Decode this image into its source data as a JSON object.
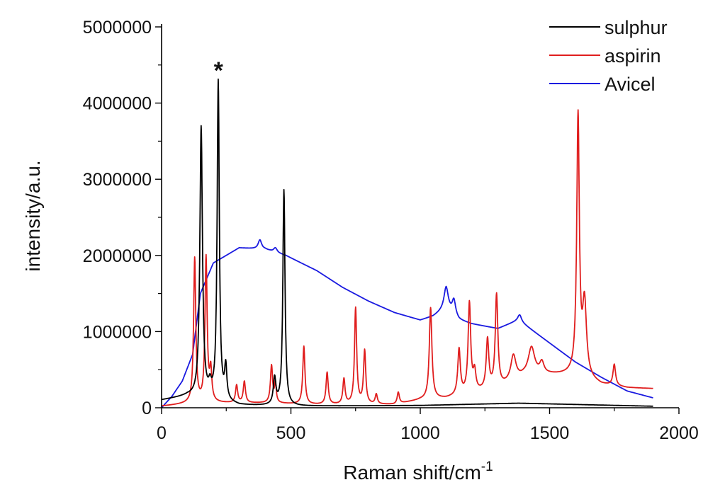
{
  "chart_data": {
    "type": "line",
    "title": "",
    "xlabel": "Raman shift/cm",
    "xlabel_sup": "-1",
    "ylabel": "intensity/a.u.",
    "xlim": [
      0,
      2000
    ],
    "ylim": [
      0,
      5000000
    ],
    "xticks": [
      0,
      500,
      1000,
      1500,
      2000
    ],
    "yticks": [
      0,
      1000000,
      2000000,
      3000000,
      4000000,
      5000000
    ],
    "grid": false,
    "legend_position": "top-right",
    "annotations": [
      {
        "text": "*",
        "x": 220,
        "y": 4450000
      }
    ],
    "series": [
      {
        "name": "sulphur",
        "color": "#000000",
        "baseline": [
          [
            0,
            100000
          ],
          [
            100,
            150000
          ],
          [
            200,
            100000
          ],
          [
            300,
            30000
          ],
          [
            500,
            20000
          ],
          [
            1000,
            30000
          ],
          [
            1380,
            60000
          ],
          [
            1900,
            20000
          ]
        ],
        "peaks": [
          [
            153,
            3550000,
            6
          ],
          [
            187,
            130000,
            6
          ],
          [
            219,
            4180000,
            5
          ],
          [
            248,
            430000,
            5
          ],
          [
            437,
            350000,
            6
          ],
          [
            473,
            2830000,
            5
          ]
        ]
      },
      {
        "name": "aspirin",
        "color": "#e01e1e",
        "baseline": [
          [
            0,
            20000
          ],
          [
            100,
            50000
          ],
          [
            200,
            60000
          ],
          [
            400,
            60000
          ],
          [
            600,
            40000
          ],
          [
            900,
            40000
          ],
          [
            1000,
            100000
          ],
          [
            1100,
            120000
          ],
          [
            1300,
            250000
          ],
          [
            1400,
            400000
          ],
          [
            1500,
            430000
          ],
          [
            1600,
            430000
          ],
          [
            1700,
            300000
          ],
          [
            1800,
            260000
          ],
          [
            1900,
            250000
          ]
        ],
        "peaks": [
          [
            128,
            1900000,
            5
          ],
          [
            172,
            1900000,
            5
          ],
          [
            190,
            400000,
            5
          ],
          [
            290,
            230000,
            5
          ],
          [
            320,
            280000,
            5
          ],
          [
            425,
            490000,
            5
          ],
          [
            440,
            250000,
            4
          ],
          [
            550,
            760000,
            5
          ],
          [
            640,
            420000,
            5
          ],
          [
            705,
            330000,
            5
          ],
          [
            750,
            1260000,
            5
          ],
          [
            785,
            700000,
            5
          ],
          [
            830,
            130000,
            5
          ],
          [
            915,
            150000,
            5
          ],
          [
            1040,
            1200000,
            6
          ],
          [
            1150,
            600000,
            6
          ],
          [
            1190,
            1180000,
            6
          ],
          [
            1210,
            250000,
            6
          ],
          [
            1260,
            650000,
            6
          ],
          [
            1295,
            1220000,
            6
          ],
          [
            1360,
            330000,
            12
          ],
          [
            1430,
            370000,
            15
          ],
          [
            1470,
            150000,
            10
          ],
          [
            1610,
            3380000,
            6
          ],
          [
            1635,
            950000,
            9
          ],
          [
            1750,
            280000,
            6
          ]
        ]
      },
      {
        "name": "Avicel",
        "color": "#1a1ae0",
        "baseline": [
          [
            0,
            0
          ],
          [
            40,
            150000
          ],
          [
            80,
            350000
          ],
          [
            120,
            700000
          ],
          [
            150,
            1500000
          ],
          [
            200,
            1900000
          ],
          [
            300,
            2100000
          ],
          [
            400,
            2080000
          ],
          [
            480,
            2000000
          ],
          [
            600,
            1800000
          ],
          [
            700,
            1580000
          ],
          [
            800,
            1400000
          ],
          [
            900,
            1250000
          ],
          [
            1000,
            1150000
          ],
          [
            1050,
            1200000
          ],
          [
            1100,
            1300000
          ],
          [
            1150,
            1150000
          ],
          [
            1200,
            1100000
          ],
          [
            1300,
            1040000
          ],
          [
            1380,
            1150000
          ],
          [
            1500,
            850000
          ],
          [
            1600,
            600000
          ],
          [
            1700,
            400000
          ],
          [
            1800,
            220000
          ],
          [
            1900,
            130000
          ]
        ],
        "peaks": [
          [
            380,
            120000,
            8
          ],
          [
            440,
            60000,
            8
          ],
          [
            1100,
            280000,
            10
          ],
          [
            1130,
            200000,
            8
          ],
          [
            1385,
            80000,
            8
          ]
        ]
      }
    ]
  }
}
